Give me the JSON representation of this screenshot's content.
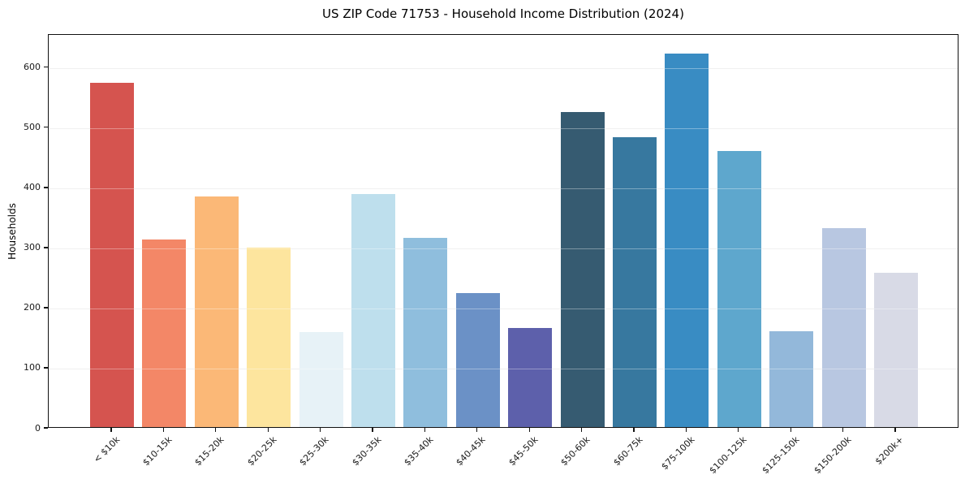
{
  "title": "US ZIP Code 71753 - Household Income Distribution (2024)",
  "chart_data": {
    "type": "bar",
    "title": "US ZIP Code 71753 - Household Income Distribution (2024)",
    "xlabel": "",
    "ylabel": "Households",
    "categories": [
      "< $10k",
      "$10-15k",
      "$15-20k",
      "$20-25k",
      "$25-30k",
      "$30-35k",
      "$35-40k",
      "$40-45k",
      "$45-50k",
      "$50-60k",
      "$60-75k",
      "$75-100k",
      "$100-125k",
      "$125-150k",
      "$150-200k",
      "$200k+"
    ],
    "values": [
      572,
      312,
      384,
      298,
      158,
      388,
      315,
      223,
      165,
      524,
      482,
      621,
      459,
      160,
      331,
      256
    ],
    "bar_colors": [
      "#d5544f",
      "#f38767",
      "#fbb877",
      "#fde59e",
      "#e7f2f7",
      "#bedfed",
      "#8fbedd",
      "#6b91c6",
      "#5d60ab",
      "#365b71",
      "#37789f",
      "#398cc3",
      "#5ea7cd",
      "#93b8da",
      "#b8c7e1",
      "#d8dae6"
    ],
    "yticks": [
      0,
      100,
      200,
      300,
      400,
      500,
      600
    ],
    "ylim": [
      0,
      655
    ],
    "grid": "horizontal",
    "gridline_color": "#e8e8e8",
    "background_color": "#ffffff",
    "spine_color": "#111111",
    "legend": "none",
    "x_tick_rotation_deg": 45
  }
}
